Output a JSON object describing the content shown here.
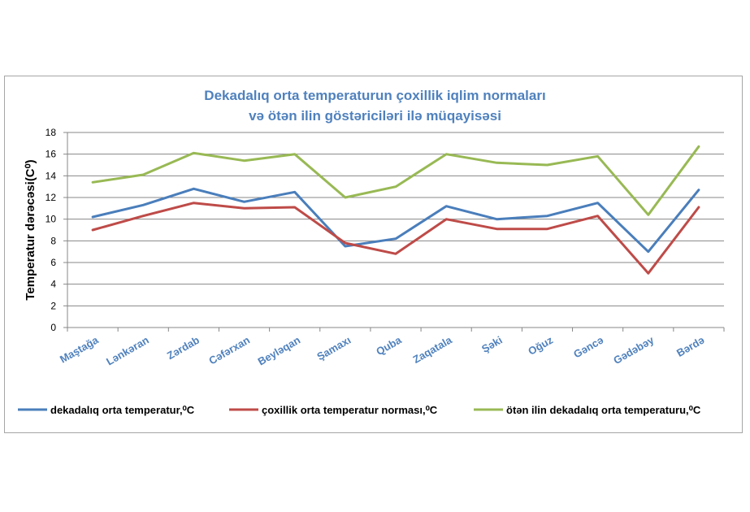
{
  "chart_data": {
    "type": "line",
    "title_line1": "Dekadalıq orta temperaturun çoxillik iqlim normaları",
    "title_line2": "və ötən ilin göstəriciləri ilə müqayisəsi",
    "ylabel": "Temperatur dərəcəsi(C⁰)",
    "xlabel": "",
    "ylim": [
      0,
      18
    ],
    "yticks": [
      0,
      2,
      4,
      6,
      8,
      10,
      12,
      14,
      16,
      18
    ],
    "grid": true,
    "legend_position": "bottom",
    "categories": [
      "Maştağa",
      "Lənkəran",
      "Zərdab",
      "Cəfərxan",
      "Beyləqan",
      "Şamaxı",
      "Quba",
      "Zaqatala",
      "Şəki",
      "Oğuz",
      "Gəncə",
      "Gədəbəy",
      "Bərdə"
    ],
    "series": [
      {
        "name": "dekadalıq orta temperatur,⁰C",
        "color": "#4a7ebb",
        "values": [
          10.2,
          11.3,
          12.8,
          11.6,
          12.5,
          7.5,
          8.2,
          11.2,
          10.0,
          10.3,
          11.5,
          7.0,
          12.7
        ]
      },
      {
        "name": "çoxillik orta temperatur norması,⁰C",
        "color": "#be4b48",
        "values": [
          9.0,
          10.3,
          11.5,
          11.0,
          11.1,
          7.8,
          6.8,
          10.0,
          9.1,
          9.1,
          10.3,
          5.0,
          11.1
        ]
      },
      {
        "name": "ötən ilin dekadalıq orta temperaturu,⁰C",
        "color": "#98b954",
        "values": [
          13.4,
          14.1,
          16.1,
          15.4,
          16.0,
          12.0,
          13.0,
          16.0,
          15.2,
          15.0,
          15.8,
          10.4,
          16.7
        ]
      }
    ]
  }
}
